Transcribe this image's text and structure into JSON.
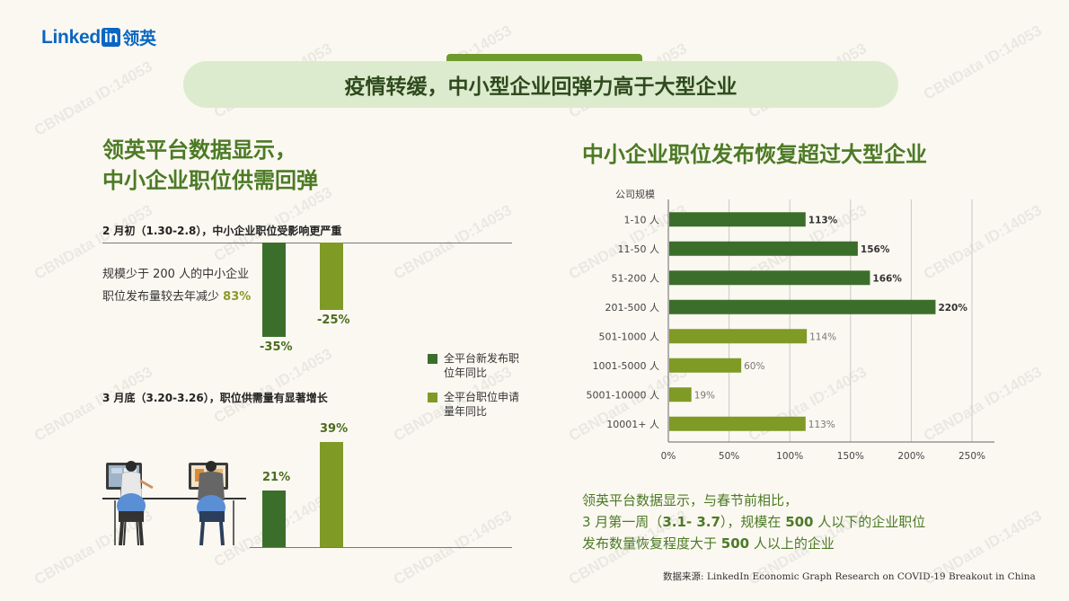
{
  "logo": {
    "text": "Linked",
    "in": "in",
    "cn": "领英"
  },
  "banner": "疫情转缓，中小型企业回弹力高于大型企业",
  "left": {
    "heading_line1": "领英平台数据显示，",
    "heading_line2": "中小企业职位供需回弹",
    "section1_title": "2 月初（1.30-2.8），中小企业职位受影响更严重",
    "stat_prefix": "规模少于 200 人的中中小企业职位发布量较去年减少",
    "stat_text": "规模少于 200 人的中小企业职位发布量较去年减少",
    "stat_value": "83%",
    "section2_title": "3 月底（3.20-3.26），职位供需量有显著增长",
    "legend": [
      {
        "label": "全平台新发布职位年同比",
        "color": "#3c6e2b"
      },
      {
        "label": "全平台职位申请量年同比",
        "color": "#7f9a25"
      }
    ]
  },
  "chart_data": [
    {
      "type": "bar",
      "categories": [
        "2 月初（1.30-2.8）"
      ],
      "series": [
        {
          "name": "全平台新发布职位年同比",
          "values": [
            -35
          ]
        },
        {
          "name": "全平台职位申请量年同比",
          "values": [
            -25
          ]
        }
      ],
      "value_labels": [
        "-35%",
        "-25%"
      ]
    },
    {
      "type": "bar",
      "categories": [
        "3 月底（3.20-3.26）"
      ],
      "series": [
        {
          "name": "全平台新发布职位年同比",
          "values": [
            21
          ]
        },
        {
          "name": "全平台职位申请量年同比",
          "values": [
            39
          ]
        }
      ],
      "value_labels": [
        "21%",
        "39%"
      ]
    },
    {
      "type": "bar",
      "orientation": "horizontal",
      "title": "中小企业职位发布恢复超过大型企业",
      "ylabel": "公司规模",
      "categories": [
        "1-10 人",
        "11-50 人",
        "51-200 人",
        "201-500 人",
        "501-1000 人",
        "1001-5000 人",
        "5001-10000 人",
        "10001+ 人"
      ],
      "values": [
        113,
        156,
        166,
        220,
        114,
        60,
        19,
        113
      ],
      "value_labels": [
        "113%",
        "156%",
        "166%",
        "220%",
        "114%",
        "60%",
        "19%",
        "113%"
      ],
      "bar_colors": [
        "#3c6e2b",
        "#3c6e2b",
        "#3c6e2b",
        "#3c6e2b",
        "#7f9a25",
        "#7f9a25",
        "#7f9a25",
        "#7f9a25"
      ],
      "x_ticks": [
        "0%",
        "50%",
        "100%",
        "150%",
        "200%",
        "250%"
      ],
      "xlim": [
        0,
        250
      ],
      "grid": true
    }
  ],
  "footer": {
    "line1": "领英平台数据显示，与春节前相比，",
    "line2_a": "3 月第一周（",
    "line2_b": "3.1- 3.7",
    "line2_c": "），规模在 ",
    "line2_d": "500",
    "line2_e": " 人以下的企业职位",
    "line3_a": "发布数量恢复程度大于 ",
    "line3_b": "500",
    "line3_c": " 人以上的企业"
  },
  "source": "数据来源: LinkedIn Economic Graph Research on COVID-19 Breakout in China",
  "watermark": "CBNData ID:14053",
  "colors": {
    "dark_green": "#3c6e2b",
    "olive_green": "#7f9a25",
    "heading_green": "#4c7a25",
    "banner_bg": "#dcebcd"
  }
}
